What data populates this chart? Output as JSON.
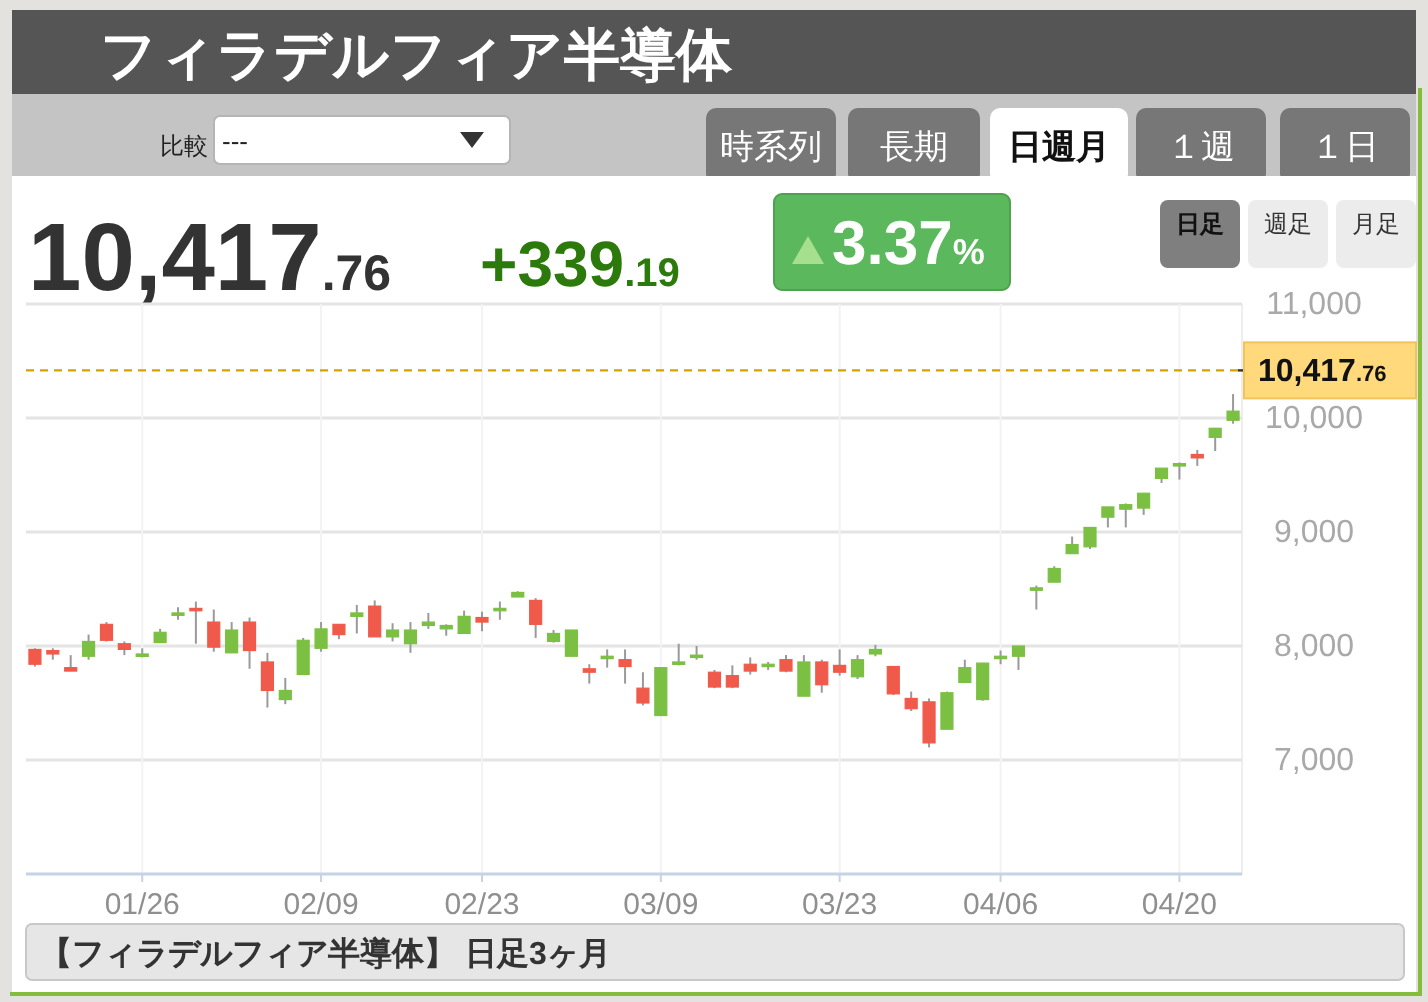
{
  "chart_data": {
    "type": "candlestick",
    "title": "フィラデルフィア半導体",
    "annotations": [
      "10,417.76",
      "+339.19",
      "3.37%",
      "比較",
      "---",
      "時系列",
      "長期",
      "日週月",
      "１週",
      "１日",
      "日足",
      "週足",
      "月足",
      "【フィラデルフィア半導体】 日足3ヶ月"
    ],
    "categories": [
      null,
      null,
      null,
      null,
      null,
      null,
      "01/26",
      null,
      null,
      null,
      null,
      null,
      null,
      null,
      null,
      null,
      "02/09",
      null,
      null,
      null,
      null,
      null,
      null,
      null,
      null,
      "02/23",
      null,
      null,
      null,
      null,
      null,
      null,
      null,
      null,
      null,
      "03/09",
      null,
      null,
      null,
      null,
      null,
      null,
      null,
      null,
      null,
      "03/23",
      null,
      null,
      null,
      null,
      null,
      null,
      null,
      null,
      "04/06",
      null,
      null,
      null,
      null,
      null,
      null,
      null,
      null,
      null,
      "04/20",
      null,
      null,
      null
    ],
    "ohlc": [
      [
        7970,
        7980,
        7820,
        7840
      ],
      [
        7960,
        7980,
        7880,
        7930
      ],
      [
        7810,
        7920,
        7780,
        7780
      ],
      [
        7910,
        8100,
        7880,
        8040
      ],
      [
        8190,
        8210,
        8040,
        8050
      ],
      [
        8020,
        8040,
        7920,
        7970
      ],
      [
        7910,
        7980,
        7900,
        7930
      ],
      [
        8030,
        8150,
        8030,
        8120
      ],
      [
        8270,
        8340,
        8230,
        8290
      ],
      [
        8330,
        8390,
        8020,
        8310
      ],
      [
        8210,
        8320,
        7950,
        7990
      ],
      [
        7940,
        8210,
        7940,
        8140
      ],
      [
        8210,
        8250,
        7800,
        7960
      ],
      [
        7860,
        7940,
        7460,
        7610
      ],
      [
        7530,
        7720,
        7490,
        7610
      ],
      [
        7750,
        8070,
        7750,
        8050
      ],
      [
        7980,
        8210,
        7950,
        8150
      ],
      [
        8190,
        8190,
        8060,
        8100
      ],
      [
        8260,
        8360,
        8110,
        8290
      ],
      [
        8350,
        8400,
        8080,
        8080
      ],
      [
        8080,
        8200,
        8040,
        8140
      ],
      [
        8020,
        8210,
        7940,
        8140
      ],
      [
        8180,
        8290,
        8150,
        8210
      ],
      [
        8150,
        8190,
        8090,
        8180
      ],
      [
        8110,
        8310,
        8110,
        8260
      ],
      [
        8250,
        8300,
        8130,
        8210
      ],
      [
        8310,
        8390,
        8230,
        8330
      ],
      [
        8430,
        8480,
        8430,
        8470
      ],
      [
        8400,
        8420,
        8070,
        8190
      ],
      [
        8040,
        8140,
        8030,
        8110
      ],
      [
        7910,
        8140,
        7910,
        8140
      ],
      [
        7800,
        7840,
        7670,
        7770
      ],
      [
        7890,
        7970,
        7810,
        7910
      ],
      [
        7880,
        7970,
        7670,
        7820
      ],
      [
        7630,
        7770,
        7480,
        7500
      ],
      [
        7390,
        7810,
        7390,
        7810
      ],
      [
        7840,
        8020,
        7830,
        7860
      ],
      [
        7900,
        8000,
        7880,
        7920
      ],
      [
        7770,
        7790,
        7630,
        7640
      ],
      [
        7740,
        7830,
        7630,
        7640
      ],
      [
        7840,
        7900,
        7750,
        7780
      ],
      [
        7820,
        7860,
        7790,
        7840
      ],
      [
        7880,
        7920,
        7770,
        7780
      ],
      [
        7560,
        7920,
        7560,
        7860
      ],
      [
        7860,
        7880,
        7590,
        7660
      ],
      [
        7830,
        7970,
        7740,
        7770
      ],
      [
        7730,
        7920,
        7710,
        7880
      ],
      [
        7930,
        8010,
        7910,
        7970
      ],
      [
        7820,
        7820,
        7570,
        7580
      ],
      [
        7540,
        7600,
        7430,
        7450
      ],
      [
        7510,
        7540,
        7110,
        7150
      ],
      [
        7270,
        7600,
        7270,
        7590
      ],
      [
        7680,
        7880,
        7680,
        7810
      ],
      [
        7530,
        7850,
        7520,
        7850
      ],
      [
        7890,
        7960,
        7840,
        7910
      ],
      [
        7910,
        8000,
        7790,
        8000
      ],
      [
        8490,
        8530,
        8320,
        8510
      ],
      [
        8560,
        8700,
        8560,
        8680
      ],
      [
        8810,
        8960,
        8810,
        8890
      ],
      [
        8870,
        9040,
        8850,
        9040
      ],
      [
        9130,
        9220,
        9040,
        9220
      ],
      [
        9200,
        9250,
        9040,
        9240
      ],
      [
        9210,
        9340,
        9150,
        9340
      ],
      [
        9470,
        9560,
        9430,
        9560
      ],
      [
        9590,
        9610,
        9460,
        9600
      ],
      [
        9680,
        9720,
        9580,
        9650
      ],
      [
        9830,
        9910,
        9710,
        9910
      ],
      [
        9980,
        10210,
        9950,
        10060
      ]
    ],
    "colors": [
      "#f05a4b",
      "#f05a4b",
      "#f05a4b",
      "#7bc043",
      "#f05a4b",
      "#f05a4b",
      "#7bc043",
      "#7bc043",
      "#7bc043",
      "#f05a4b",
      "#f05a4b",
      "#7bc043",
      "#f05a4b",
      "#f05a4b",
      "#7bc043",
      "#7bc043",
      "#7bc043",
      "#f05a4b",
      "#7bc043",
      "#f05a4b",
      "#7bc043",
      "#7bc043",
      "#7bc043",
      "#7bc043",
      "#7bc043",
      "#f05a4b",
      "#7bc043",
      "#7bc043",
      "#f05a4b",
      "#7bc043",
      "#7bc043",
      "#f05a4b",
      "#7bc043",
      "#f05a4b",
      "#f05a4b",
      "#7bc043",
      "#7bc043",
      "#7bc043",
      "#f05a4b",
      "#f05a4b",
      "#f05a4b",
      "#7bc043",
      "#f05a4b",
      "#7bc043",
      "#f05a4b",
      "#f05a4b",
      "#7bc043",
      "#7bc043",
      "#f05a4b",
      "#f05a4b",
      "#f05a4b",
      "#7bc043",
      "#7bc043",
      "#7bc043",
      "#7bc043",
      "#7bc043",
      "#7bc043",
      "#7bc043",
      "#7bc043",
      "#7bc043",
      "#7bc043",
      "#7bc043",
      "#7bc043",
      "#7bc043",
      "#7bc043",
      "#f05a4b",
      "#7bc043",
      "#7bc043"
    ],
    "ylim": [
      6000,
      11000
    ],
    "yticks": [
      {
        "value": 7000,
        "label": "7,000"
      },
      {
        "value": 8000,
        "label": "8,000"
      },
      {
        "value": 9000,
        "label": "9,000"
      },
      {
        "value": 10000,
        "label": "10,000"
      },
      {
        "value": 11000,
        "label": "11,000"
      }
    ],
    "ref_lines": [
      {
        "axis": "y",
        "value": 10417.76,
        "label": "10,417.76",
        "color": "#d4a300",
        "line_style": "dashed"
      }
    ],
    "grid": true
  }
}
